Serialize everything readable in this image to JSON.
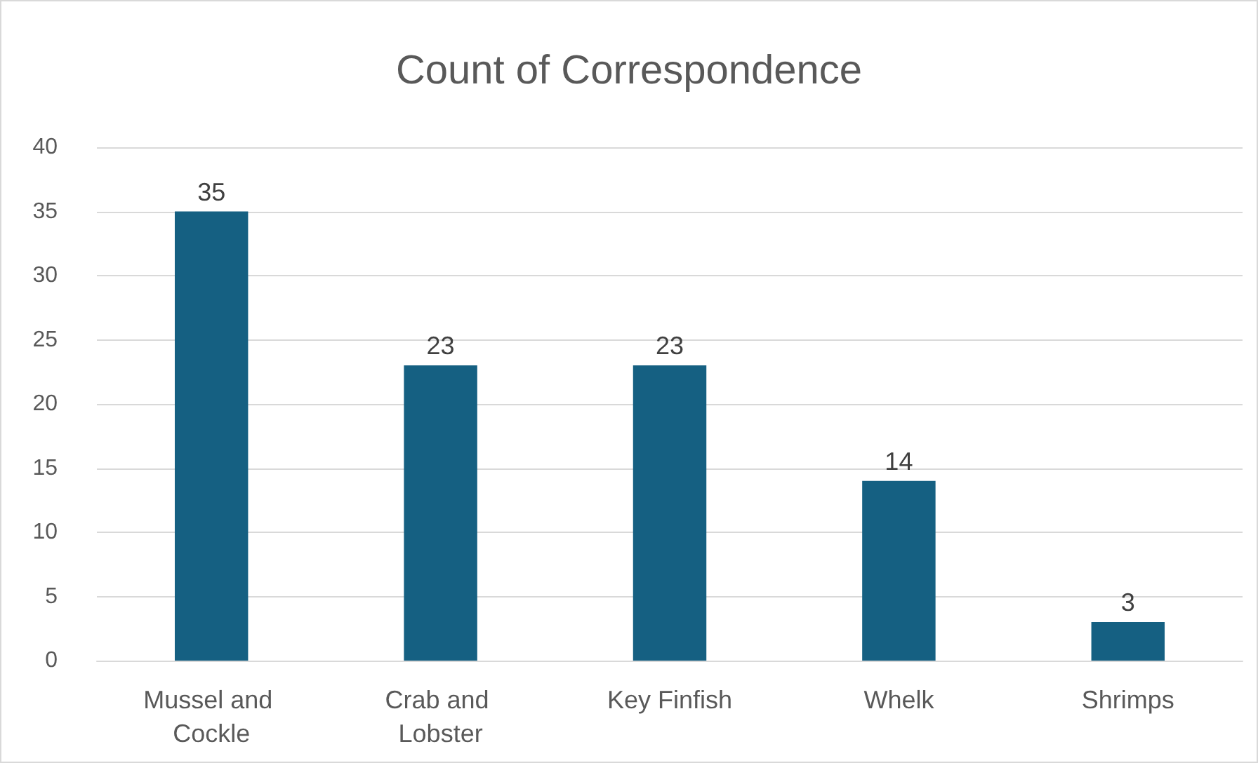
{
  "chart_data": {
    "type": "bar",
    "title": "Count of Correspondence",
    "categories": [
      "Mussel and Cockle",
      "Crab and Lobster",
      "Key Finfish",
      "Whelk",
      "Shrimps"
    ],
    "values": [
      35,
      23,
      23,
      14,
      3
    ],
    "color": "#156082",
    "ylim": [
      0,
      40
    ],
    "yticks": [
      0,
      5,
      10,
      15,
      20,
      25,
      30,
      35,
      40
    ],
    "grid": "y",
    "data_labels": true
  }
}
